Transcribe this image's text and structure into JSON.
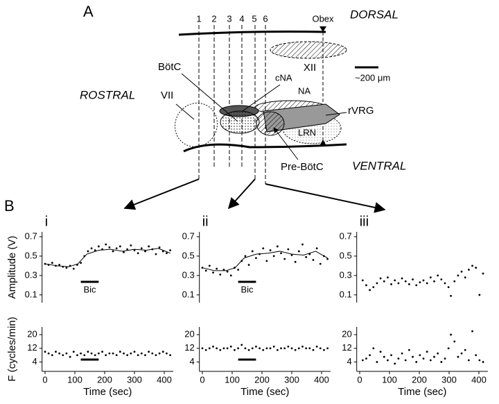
{
  "diagram": {
    "panel_a": "A",
    "panel_b": "B",
    "dorsal": "DORSAL",
    "ventral": "VENTRAL",
    "rostral": "ROSTRAL",
    "obex": "Obex",
    "scale": "~200 μm",
    "lines": [
      "1",
      "2",
      "3",
      "4",
      "5",
      "6"
    ],
    "regions": {
      "xii": "XII",
      "botc": "BötC",
      "cna": "cNA",
      "na": "NA",
      "vii": "VII",
      "rvrg": "rVRG",
      "lrn": "LRN",
      "prebotc": "Pre-BötC"
    }
  },
  "chart_data": [
    {
      "type": "scatter",
      "panel": "i",
      "y_label": "Amplitude (V)",
      "color": "#000000",
      "x": [
        0,
        12,
        24,
        36,
        48,
        60,
        72,
        84,
        96,
        108,
        120,
        132,
        144,
        156,
        168,
        180,
        192,
        204,
        216,
        228,
        240,
        252,
        264,
        276,
        288,
        300,
        312,
        324,
        336,
        348,
        360,
        372,
        384,
        396,
        408,
        420
      ],
      "values": [
        0.42,
        0.41,
        0.43,
        0.4,
        0.41,
        0.39,
        0.38,
        0.4,
        0.37,
        0.41,
        0.43,
        0.5,
        0.55,
        0.58,
        0.56,
        0.6,
        0.57,
        0.62,
        0.59,
        0.55,
        0.58,
        0.6,
        0.54,
        0.57,
        0.61,
        0.56,
        0.53,
        0.58,
        0.55,
        0.6,
        0.57,
        0.52,
        0.59,
        0.55,
        0.53,
        0.56
      ],
      "line": {
        "x": [
          0,
          40,
          80,
          110,
          140,
          180,
          220,
          260,
          300,
          340,
          380,
          420
        ],
        "values": [
          0.42,
          0.4,
          0.39,
          0.42,
          0.52,
          0.56,
          0.57,
          0.55,
          0.57,
          0.56,
          0.58,
          0.53
        ]
      },
      "stimulus": {
        "label": "Bic",
        "x": [
          120,
          180
        ]
      },
      "xlim": [
        -10,
        430
      ],
      "ylim": [
        0.02,
        0.75
      ],
      "yticks": [
        0.1,
        0.3,
        0.5,
        0.7
      ]
    },
    {
      "type": "scatter",
      "y_label": "F (cycles/min)",
      "x_label": "Time (sec)",
      "color": "#000000",
      "x": [
        0,
        12,
        24,
        36,
        48,
        60,
        72,
        84,
        96,
        108,
        120,
        132,
        144,
        156,
        168,
        180,
        192,
        204,
        216,
        228,
        240,
        252,
        264,
        276,
        288,
        300,
        312,
        324,
        336,
        348,
        360,
        372,
        384,
        396,
        408,
        420
      ],
      "values": [
        10,
        9,
        8,
        10,
        9,
        8,
        9,
        7,
        10,
        8,
        9,
        8,
        10,
        9,
        8,
        9,
        10,
        8,
        9,
        9,
        8,
        10,
        9,
        8,
        9,
        10,
        8,
        9,
        8,
        10,
        9,
        8,
        9,
        10,
        9,
        8
      ],
      "stimulus": {
        "x": [
          120,
          180
        ]
      },
      "xlim": [
        -10,
        430
      ],
      "ylim": [
        -1.5,
        24.5
      ],
      "xticks": [
        0,
        100,
        200,
        300,
        400
      ],
      "yticks": [
        4,
        12,
        20
      ]
    },
    {
      "type": "scatter",
      "panel": "ii",
      "color": "#000000",
      "x": [
        0,
        12,
        24,
        36,
        48,
        60,
        72,
        84,
        96,
        108,
        120,
        132,
        144,
        156,
        168,
        180,
        192,
        204,
        216,
        228,
        240,
        252,
        264,
        276,
        288,
        300,
        312,
        324,
        336,
        348,
        360,
        372,
        384,
        396,
        408,
        420
      ],
      "values": [
        0.38,
        0.35,
        0.4,
        0.33,
        0.37,
        0.31,
        0.36,
        0.34,
        0.3,
        0.38,
        0.36,
        0.45,
        0.5,
        0.41,
        0.55,
        0.48,
        0.52,
        0.58,
        0.45,
        0.56,
        0.5,
        0.6,
        0.53,
        0.47,
        0.57,
        0.51,
        0.44,
        0.55,
        0.62,
        0.49,
        0.52,
        0.46,
        0.58,
        0.42,
        0.5,
        0.47
      ],
      "line": {
        "x": [
          0,
          40,
          80,
          110,
          140,
          180,
          220,
          260,
          300,
          340,
          380,
          420
        ],
        "values": [
          0.38,
          0.35,
          0.35,
          0.38,
          0.48,
          0.52,
          0.53,
          0.55,
          0.52,
          0.51,
          0.55,
          0.48
        ]
      },
      "stimulus": {
        "label": "Bic",
        "x": [
          120,
          180
        ]
      },
      "xlim": [
        -10,
        430
      ],
      "ylim": [
        0.02,
        0.75
      ],
      "yticks": [
        0.1,
        0.3,
        0.5,
        0.7
      ]
    },
    {
      "type": "scatter",
      "x_label": "Time (sec)",
      "color": "#000000",
      "x": [
        0,
        12,
        24,
        36,
        48,
        60,
        72,
        84,
        96,
        108,
        120,
        132,
        144,
        156,
        168,
        180,
        192,
        204,
        216,
        228,
        240,
        252,
        264,
        276,
        288,
        300,
        312,
        324,
        336,
        348,
        360,
        372,
        384,
        396,
        408,
        420
      ],
      "values": [
        12,
        11,
        12,
        13,
        12,
        11,
        12,
        12,
        13,
        11,
        12,
        14,
        12,
        11,
        12,
        13,
        12,
        11,
        12,
        12,
        13,
        11,
        12,
        12,
        13,
        12,
        11,
        12,
        13,
        12,
        12,
        11,
        13,
        12,
        11,
        12
      ],
      "stimulus": {
        "x": [
          120,
          180
        ]
      },
      "xlim": [
        -10,
        430
      ],
      "ylim": [
        -1.5,
        24.5
      ],
      "xticks": [
        0,
        100,
        200,
        300,
        400
      ],
      "yticks": [
        4,
        12,
        20
      ]
    },
    {
      "type": "scatter",
      "panel": "iii",
      "color": "#000000",
      "x": [
        10,
        22,
        34,
        46,
        58,
        70,
        82,
        94,
        106,
        118,
        130,
        142,
        154,
        166,
        178,
        190,
        202,
        214,
        226,
        238,
        250,
        262,
        274,
        286,
        298,
        306,
        318,
        330,
        342,
        354,
        366,
        378,
        390,
        402,
        414
      ],
      "values": [
        0.25,
        0.2,
        0.15,
        0.18,
        0.22,
        0.27,
        0.24,
        0.28,
        0.21,
        0.25,
        0.22,
        0.27,
        0.24,
        0.21,
        0.26,
        0.2,
        0.23,
        0.25,
        0.22,
        0.28,
        0.24,
        0.3,
        0.26,
        0.22,
        0.18,
        0.09,
        0.24,
        0.3,
        0.34,
        0.28,
        0.36,
        0.4,
        0.38,
        0.1,
        0.32
      ],
      "xlim": [
        -10,
        430
      ],
      "ylim": [
        0.02,
        0.75
      ],
      "yticks": [
        0.1,
        0.3,
        0.5,
        0.7
      ]
    },
    {
      "type": "scatter",
      "x_label": "Time (sec)",
      "color": "#000000",
      "x": [
        10,
        22,
        34,
        46,
        58,
        70,
        82,
        94,
        106,
        118,
        130,
        142,
        154,
        166,
        178,
        190,
        202,
        214,
        226,
        238,
        250,
        262,
        274,
        286,
        298,
        306,
        318,
        330,
        342,
        354,
        366,
        378,
        390,
        402,
        414
      ],
      "values": [
        5,
        6,
        8,
        12,
        4,
        10,
        7,
        5,
        8,
        3,
        6,
        9,
        5,
        11,
        7,
        4,
        8,
        6,
        10,
        5,
        7,
        9,
        4,
        6,
        12,
        20,
        16,
        7,
        9,
        11,
        5,
        22,
        8,
        5,
        4
      ],
      "xlim": [
        -10,
        430
      ],
      "ylim": [
        -1.5,
        24.5
      ],
      "xticks": [
        0,
        100,
        200,
        300,
        400
      ],
      "yticks": [
        4,
        12,
        20
      ]
    }
  ]
}
